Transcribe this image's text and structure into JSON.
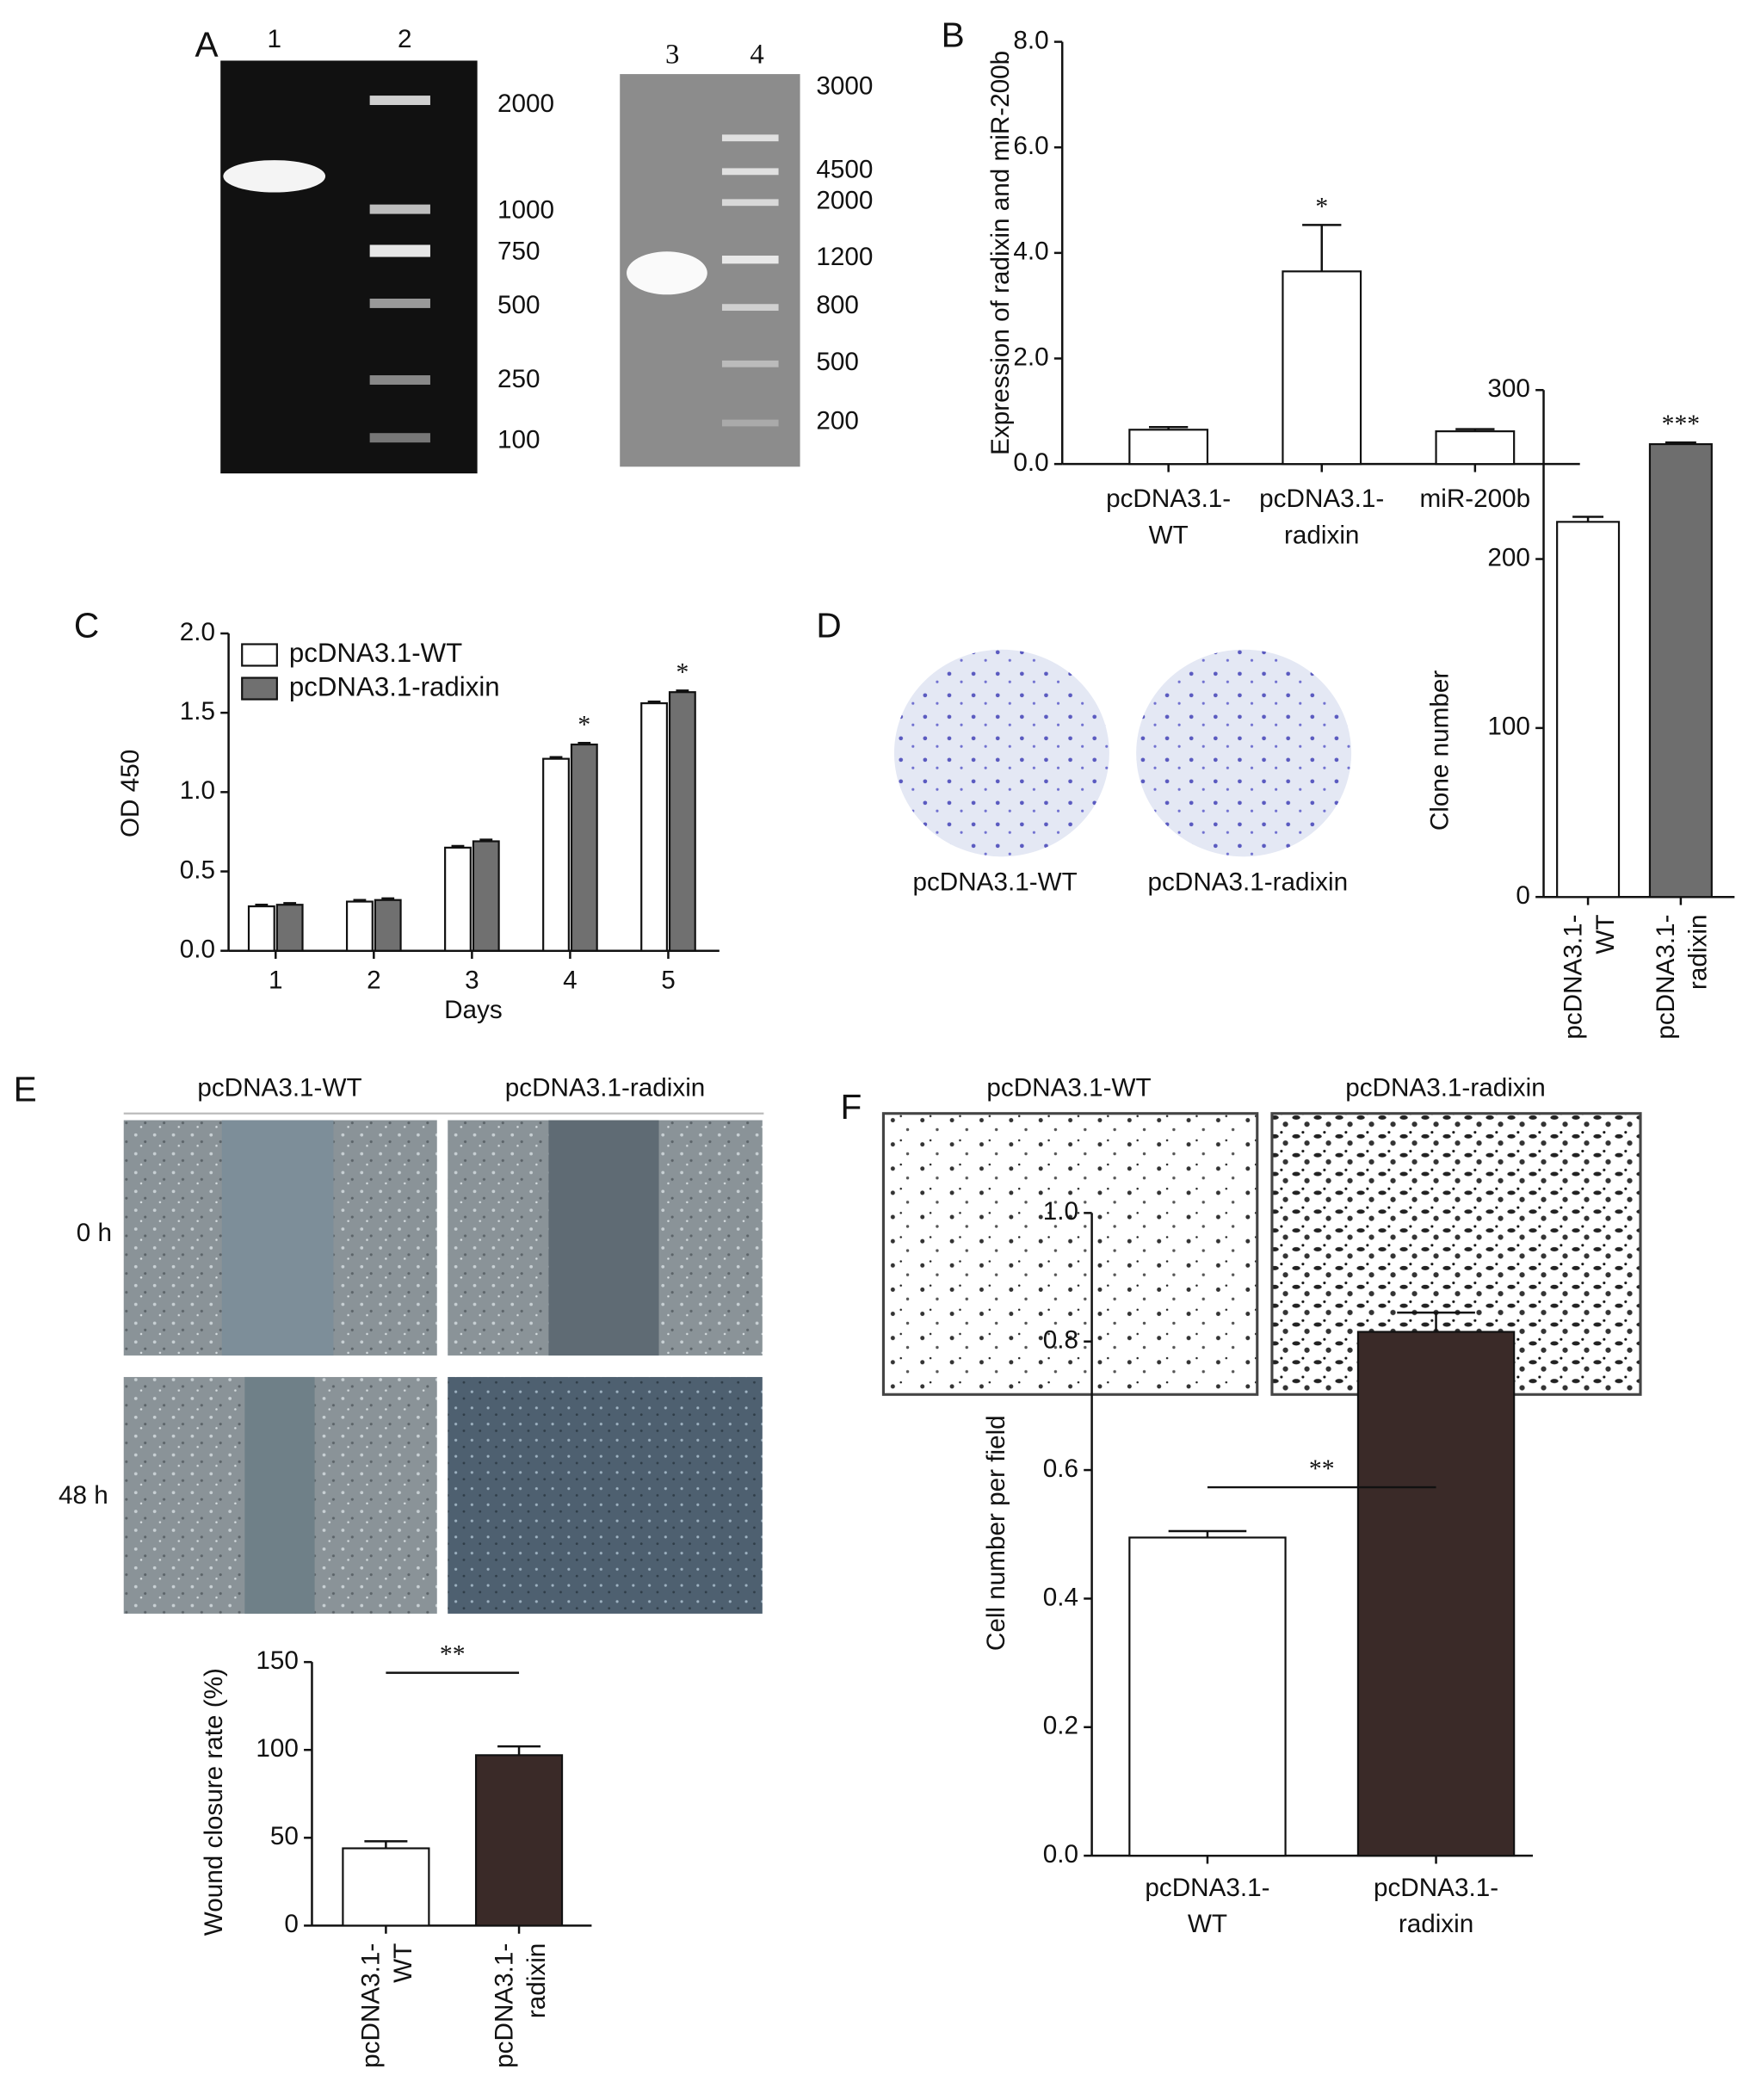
{
  "figure": {
    "panel_labels": [
      "A",
      "B",
      "C",
      "D",
      "E",
      "F"
    ],
    "gel_left": {
      "lanes": [
        "1",
        "2"
      ],
      "markers": [
        "2000",
        "1000",
        "750",
        "500",
        "250",
        "100"
      ]
    },
    "gel_right": {
      "lanes": [
        "3",
        "4"
      ],
      "markers": [
        "3000",
        "4500",
        "2000",
        "1200",
        "800",
        "500",
        "200"
      ]
    },
    "colony_labels": [
      "pcDNA3.1-WT",
      "pcDNA3.1-radixin"
    ],
    "wound_headers": [
      "pcDNA3.1-WT",
      "pcDNA3.1-radixin"
    ],
    "wound_rows": [
      "0 h",
      "48 h"
    ],
    "transwell_headers": [
      "pcDNA3.1-WT",
      "pcDNA3.1-radixin"
    ]
  },
  "chart_data": [
    {
      "type": "bar",
      "y_label": "Expression of radixin and miR-200b",
      "categories": [
        [
          "pcDNA3.1-",
          "WT"
        ],
        [
          "pcDNA3.1-",
          "radixin"
        ],
        [
          "miR-200b"
        ]
      ],
      "series": [
        {
          "color": "#ffffff",
          "values": [
            0.65,
            3.65,
            0.62
          ],
          "errors": [
            0.05,
            0.88,
            0.04
          ],
          "significance": [
            null,
            "*",
            null
          ]
        }
      ],
      "ylim": [
        0,
        8
      ],
      "yticks": [
        {
          "value": 0,
          "label": "0.0"
        },
        {
          "value": 2,
          "label": "2.0"
        },
        {
          "value": 4,
          "label": "4.0"
        },
        {
          "value": 6,
          "label": "6.0"
        },
        {
          "value": 8,
          "label": "8.0"
        }
      ]
    },
    {
      "type": "bar",
      "x_label": "Days",
      "y_label": "OD 450",
      "categories": [
        [
          "1"
        ],
        [
          "2"
        ],
        [
          "3"
        ],
        [
          "4"
        ],
        [
          "5"
        ]
      ],
      "series": [
        {
          "name": "pcDNA3.1-WT",
          "color": "#ffffff",
          "values": [
            0.28,
            0.31,
            0.65,
            1.21,
            1.56
          ],
          "errors": [
            0.01,
            0.01,
            0.01,
            0.01,
            0.01
          ],
          "significance": [
            null,
            null,
            null,
            null,
            null
          ]
        },
        {
          "name": "pcDNA3.1-radixin",
          "color": "#707070",
          "values": [
            0.29,
            0.32,
            0.69,
            1.3,
            1.63
          ],
          "errors": [
            0.01,
            0.01,
            0.01,
            0.01,
            0.01
          ],
          "significance": [
            null,
            null,
            null,
            "*",
            "*"
          ]
        }
      ],
      "ylim": [
        0,
        2
      ],
      "yticks": [
        {
          "value": 0,
          "label": "0.0"
        },
        {
          "value": 0.5,
          "label": "0.5"
        },
        {
          "value": 1,
          "label": "1.0"
        },
        {
          "value": 1.5,
          "label": "1.5"
        },
        {
          "value": 2,
          "label": "2.0"
        }
      ],
      "legend": "top-left"
    },
    {
      "type": "bar",
      "y_label": "Clone number",
      "categories": [
        [
          "pcDNA3.1-",
          "WT"
        ],
        [
          "pcDNA3.1-",
          "radixin"
        ]
      ],
      "series": [
        {
          "color": "#6e6e6e",
          "values": [
            222,
            268
          ],
          "errors": [
            3,
            1
          ],
          "colors": [
            "#ffffff",
            "#6e6e6e"
          ],
          "significance": [
            null,
            "***"
          ]
        }
      ],
      "ylim": [
        0,
        300
      ],
      "yticks": [
        0,
        100,
        200,
        300
      ],
      "rotated_labels": true
    },
    {
      "type": "bar",
      "y_label": "Wound closure rate (%)",
      "categories": [
        [
          "pcDNA3.1-",
          "WT"
        ],
        [
          "pcDNA3.1-",
          "radixin"
        ]
      ],
      "series": [
        {
          "color": "#3a2a28",
          "values": [
            44,
            97
          ],
          "errors": [
            4,
            5
          ],
          "colors": [
            "#ffffff",
            "#3a2a28"
          ]
        }
      ],
      "comparison": "**",
      "ylim": [
        0,
        150
      ],
      "yticks": [
        0,
        50,
        100,
        150
      ],
      "rotated_labels": true
    },
    {
      "type": "bar",
      "y_label": "Cell number per field",
      "categories": [
        [
          "pcDNA3.1-",
          "WT"
        ],
        [
          "pcDNA3.1-",
          "radixin"
        ]
      ],
      "series": [
        {
          "color": "#3a2a28",
          "values": [
            0.495,
            0.815
          ],
          "errors": [
            0.01,
            0.03
          ],
          "colors": [
            "#ffffff",
            "#3a2a28"
          ]
        }
      ],
      "comparison": "**",
      "ylim": [
        0,
        1
      ],
      "yticks": [
        {
          "value": 0,
          "label": "0.0"
        },
        {
          "value": 0.2,
          "label": "0.2"
        },
        {
          "value": 0.4,
          "label": "0.4"
        },
        {
          "value": 0.6,
          "label": "0.6"
        },
        {
          "value": 0.8,
          "label": "0.8"
        },
        {
          "value": 1,
          "label": "1.0"
        }
      ]
    }
  ]
}
